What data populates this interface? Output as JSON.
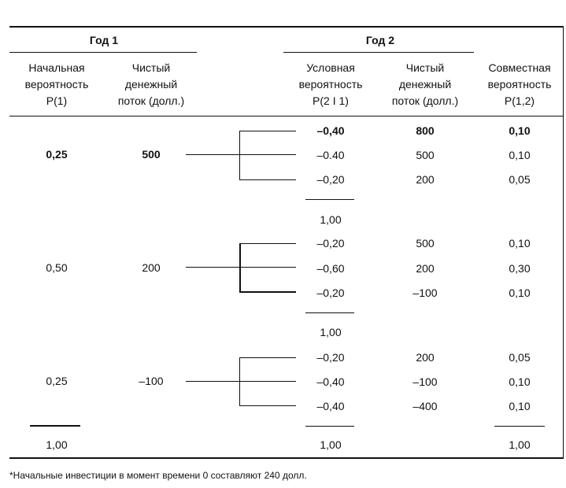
{
  "header": {
    "year1": "Год 1",
    "year2": "Год 2",
    "col_initial_prob": [
      "Начальная",
      "вероятность",
      "P(1)"
    ],
    "col_cf1": [
      "Чистый",
      "денежный",
      "поток (долл.)"
    ],
    "col_cond_prob": [
      "Условная",
      "вероятность",
      "P(2 I 1)"
    ],
    "col_cf2": [
      "Чистый",
      "денежный",
      "поток (долл.)"
    ],
    "col_joint_prob": [
      "Совместная",
      "вероятность",
      "P(1,2)"
    ]
  },
  "branches": [
    {
      "p1": "0,25",
      "cf1": "500",
      "rows": [
        {
          "p21": "–0,40",
          "cf2": "800",
          "p12": "0,10"
        },
        {
          "p21": "–0.40",
          "cf2": "500",
          "p12": "0,10"
        },
        {
          "p21": "–0,20",
          "cf2": "200",
          "p12": "0,05"
        }
      ],
      "subtotal": "1,00"
    },
    {
      "p1": "0,50",
      "cf1": "200",
      "rows": [
        {
          "p21": "–0,20",
          "cf2": "500",
          "p12": "0,10"
        },
        {
          "p21": "–0,60",
          "cf2": "200",
          "p12": "0,30"
        },
        {
          "p21": "–0,20",
          "cf2": "–100",
          "p12": "0,10"
        }
      ],
      "subtotal": "1,00"
    },
    {
      "p1": "0,25",
      "cf1": "–100",
      "rows": [
        {
          "p21": "–0,20",
          "cf2": "200",
          "p12": "0,05"
        },
        {
          "p21": "–0,40",
          "cf2": "–100",
          "p12": "0,10"
        },
        {
          "p21": "–0,40",
          "cf2": "–400",
          "p12": "0,10"
        }
      ],
      "subtotal": "1,00"
    }
  ],
  "totals": {
    "p1": "1,00",
    "p21": "1,00",
    "p12": "1,00"
  },
  "footnote": "*Начальные инвестиции в момент времени 0 составляют 240 долл."
}
